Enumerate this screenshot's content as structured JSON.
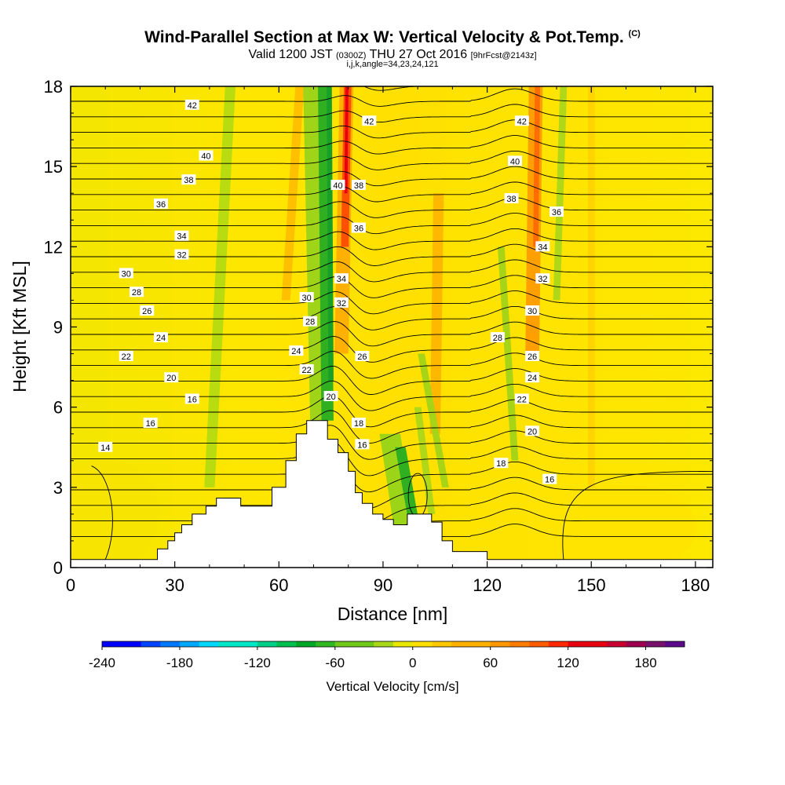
{
  "header": {
    "title": "Wind-Parallel Section at Max W: Vertical Velocity & Pot.Temp.",
    "title_tag": "(C)",
    "valid_prefix": "Valid 1200 JST",
    "valid_utc": "(0300Z)",
    "valid_date": "THU 27 Oct 2016",
    "forecast": "[9hrFcst@2143z]",
    "indices": "i,j,k,angle=34,23,24,121"
  },
  "chart_data": {
    "type": "heatmap",
    "xlabel": "Distance [nm]",
    "ylabel": "Height [Kft MSL]",
    "xlim": [
      0,
      185
    ],
    "ylim": [
      0,
      18
    ],
    "x_ticks": [
      0,
      30,
      60,
      90,
      120,
      150,
      180
    ],
    "y_ticks": [
      0,
      3,
      6,
      9,
      12,
      15,
      18
    ],
    "colorbar": {
      "title": "Vertical Velocity [cm/s]",
      "ticks": [
        "-240",
        "-180",
        "-120",
        "-60",
        "0",
        "60",
        "120",
        "180"
      ],
      "range": [
        -240,
        210
      ],
      "step": 15,
      "colors": [
        "#0000ff",
        "#0044ff",
        "#0077ff",
        "#00a8ff",
        "#00d8ff",
        "#00e8c8",
        "#00d088",
        "#00c050",
        "#00a828",
        "#30b820",
        "#70c818",
        "#a8d818",
        "#e8e800",
        "#ffe000",
        "#ffc800",
        "#ffb000",
        "#ff9800",
        "#ff7c00",
        "#ff5c00",
        "#ff2800",
        "#e80010",
        "#c80030",
        "#a00050",
        "#78106c",
        "#5a0a8a"
      ]
    },
    "terrain": [
      [
        0,
        0.3
      ],
      [
        25,
        0.3
      ],
      [
        25,
        0.7
      ],
      [
        28,
        0.7
      ],
      [
        28,
        1.0
      ],
      [
        30,
        1.0
      ],
      [
        30,
        1.3
      ],
      [
        32,
        1.3
      ],
      [
        32,
        1.6
      ],
      [
        35,
        1.6
      ],
      [
        35,
        2.0
      ],
      [
        39,
        2.0
      ],
      [
        39,
        2.3
      ],
      [
        42,
        2.3
      ],
      [
        42,
        2.6
      ],
      [
        49,
        2.6
      ],
      [
        49,
        2.3
      ],
      [
        58,
        2.3
      ],
      [
        58,
        3.0
      ],
      [
        62,
        3.0
      ],
      [
        62,
        4.0
      ],
      [
        65,
        4.0
      ],
      [
        65,
        5.0
      ],
      [
        68,
        5.0
      ],
      [
        68,
        5.5
      ],
      [
        74,
        5.5
      ],
      [
        74,
        4.8
      ],
      [
        77,
        4.8
      ],
      [
        77,
        4.3
      ],
      [
        80,
        4.3
      ],
      [
        80,
        3.6
      ],
      [
        82,
        3.6
      ],
      [
        82,
        2.8
      ],
      [
        84,
        2.8
      ],
      [
        84,
        2.4
      ],
      [
        87,
        2.4
      ],
      [
        87,
        2.0
      ],
      [
        90,
        2.0
      ],
      [
        90,
        1.8
      ],
      [
        93,
        1.8
      ],
      [
        93,
        1.6
      ],
      [
        97,
        1.6
      ],
      [
        97,
        2.0
      ],
      [
        104,
        2.0
      ],
      [
        104,
        1.7
      ],
      [
        107,
        1.7
      ],
      [
        107,
        1.0
      ],
      [
        110,
        1.0
      ],
      [
        110,
        0.6
      ],
      [
        120,
        0.6
      ],
      [
        120,
        0.3
      ],
      [
        185,
        0.3
      ]
    ],
    "contour_labels": [
      {
        "x": 35,
        "y": 17.3,
        "text": "42"
      },
      {
        "x": 86,
        "y": 16.7,
        "text": "42"
      },
      {
        "x": 130,
        "y": 16.7,
        "text": "42"
      },
      {
        "x": 39,
        "y": 15.4,
        "text": "40"
      },
      {
        "x": 128,
        "y": 15.2,
        "text": "40"
      },
      {
        "x": 77,
        "y": 14.3,
        "text": "40"
      },
      {
        "x": 34,
        "y": 14.5,
        "text": "38"
      },
      {
        "x": 83,
        "y": 14.3,
        "text": "38"
      },
      {
        "x": 127,
        "y": 13.8,
        "text": "38"
      },
      {
        "x": 26,
        "y": 13.6,
        "text": "36"
      },
      {
        "x": 83,
        "y": 12.7,
        "text": "36"
      },
      {
        "x": 140,
        "y": 13.3,
        "text": "36"
      },
      {
        "x": 32,
        "y": 12.4,
        "text": "34"
      },
      {
        "x": 78,
        "y": 10.8,
        "text": "34"
      },
      {
        "x": 136,
        "y": 12.0,
        "text": "34"
      },
      {
        "x": 32,
        "y": 11.7,
        "text": "32"
      },
      {
        "x": 78,
        "y": 9.9,
        "text": "32"
      },
      {
        "x": 136,
        "y": 10.8,
        "text": "32"
      },
      {
        "x": 16,
        "y": 11.0,
        "text": "30"
      },
      {
        "x": 68,
        "y": 10.1,
        "text": "30"
      },
      {
        "x": 133,
        "y": 9.6,
        "text": "30"
      },
      {
        "x": 19,
        "y": 10.3,
        "text": "28"
      },
      {
        "x": 69,
        "y": 9.2,
        "text": "28"
      },
      {
        "x": 123,
        "y": 8.6,
        "text": "28"
      },
      {
        "x": 22,
        "y": 9.6,
        "text": "26"
      },
      {
        "x": 84,
        "y": 7.9,
        "text": "26"
      },
      {
        "x": 133,
        "y": 7.9,
        "text": "26"
      },
      {
        "x": 26,
        "y": 8.6,
        "text": "24"
      },
      {
        "x": 65,
        "y": 8.1,
        "text": "24"
      },
      {
        "x": 133,
        "y": 7.1,
        "text": "24"
      },
      {
        "x": 16,
        "y": 7.9,
        "text": "22"
      },
      {
        "x": 68,
        "y": 7.4,
        "text": "22"
      },
      {
        "x": 130,
        "y": 6.3,
        "text": "22"
      },
      {
        "x": 29,
        "y": 7.1,
        "text": "20"
      },
      {
        "x": 75,
        "y": 6.4,
        "text": "20"
      },
      {
        "x": 133,
        "y": 5.1,
        "text": "20"
      },
      {
        "x": 83,
        "y": 5.4,
        "text": "18"
      },
      {
        "x": 124,
        "y": 3.9,
        "text": "18"
      },
      {
        "x": 35,
        "y": 6.3,
        "text": "16"
      },
      {
        "x": 23,
        "y": 5.4,
        "text": "16"
      },
      {
        "x": 84,
        "y": 4.6,
        "text": "16"
      },
      {
        "x": 138,
        "y": 3.3,
        "text": "16"
      },
      {
        "x": 10,
        "y": 4.5,
        "text": "14"
      }
    ]
  }
}
